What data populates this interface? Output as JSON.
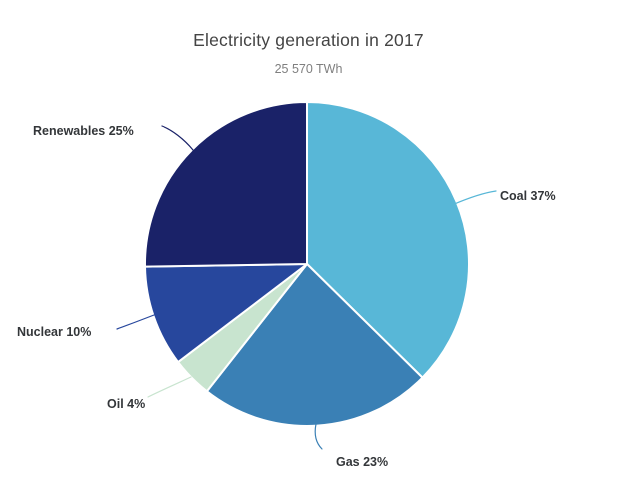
{
  "header": {
    "title": "Electricity generation in 2017",
    "subtitle": "25 570 TWh"
  },
  "chart_data": {
    "type": "pie",
    "title": "Electricity generation in 2017",
    "subtitle": "25 570 TWh",
    "total_label": "25 570 TWh",
    "unit": "TWh",
    "categories": [
      "Coal",
      "Gas",
      "Oil",
      "Nuclear",
      "Renewables"
    ],
    "values": [
      37,
      23,
      4,
      10,
      25
    ],
    "labels": [
      "Coal 37%",
      "Gas 23%",
      "Oil 4%",
      "Nuclear 10%",
      "Renewables 25%"
    ],
    "colors": [
      "#58b7d7",
      "#3a80b5",
      "#c8e4cf",
      "#27479d",
      "#1a2268"
    ],
    "start_position": "top",
    "direction": "clockwise",
    "legend": "none",
    "label_style": "outside-with-leader-lines",
    "background": "#ffffff"
  }
}
